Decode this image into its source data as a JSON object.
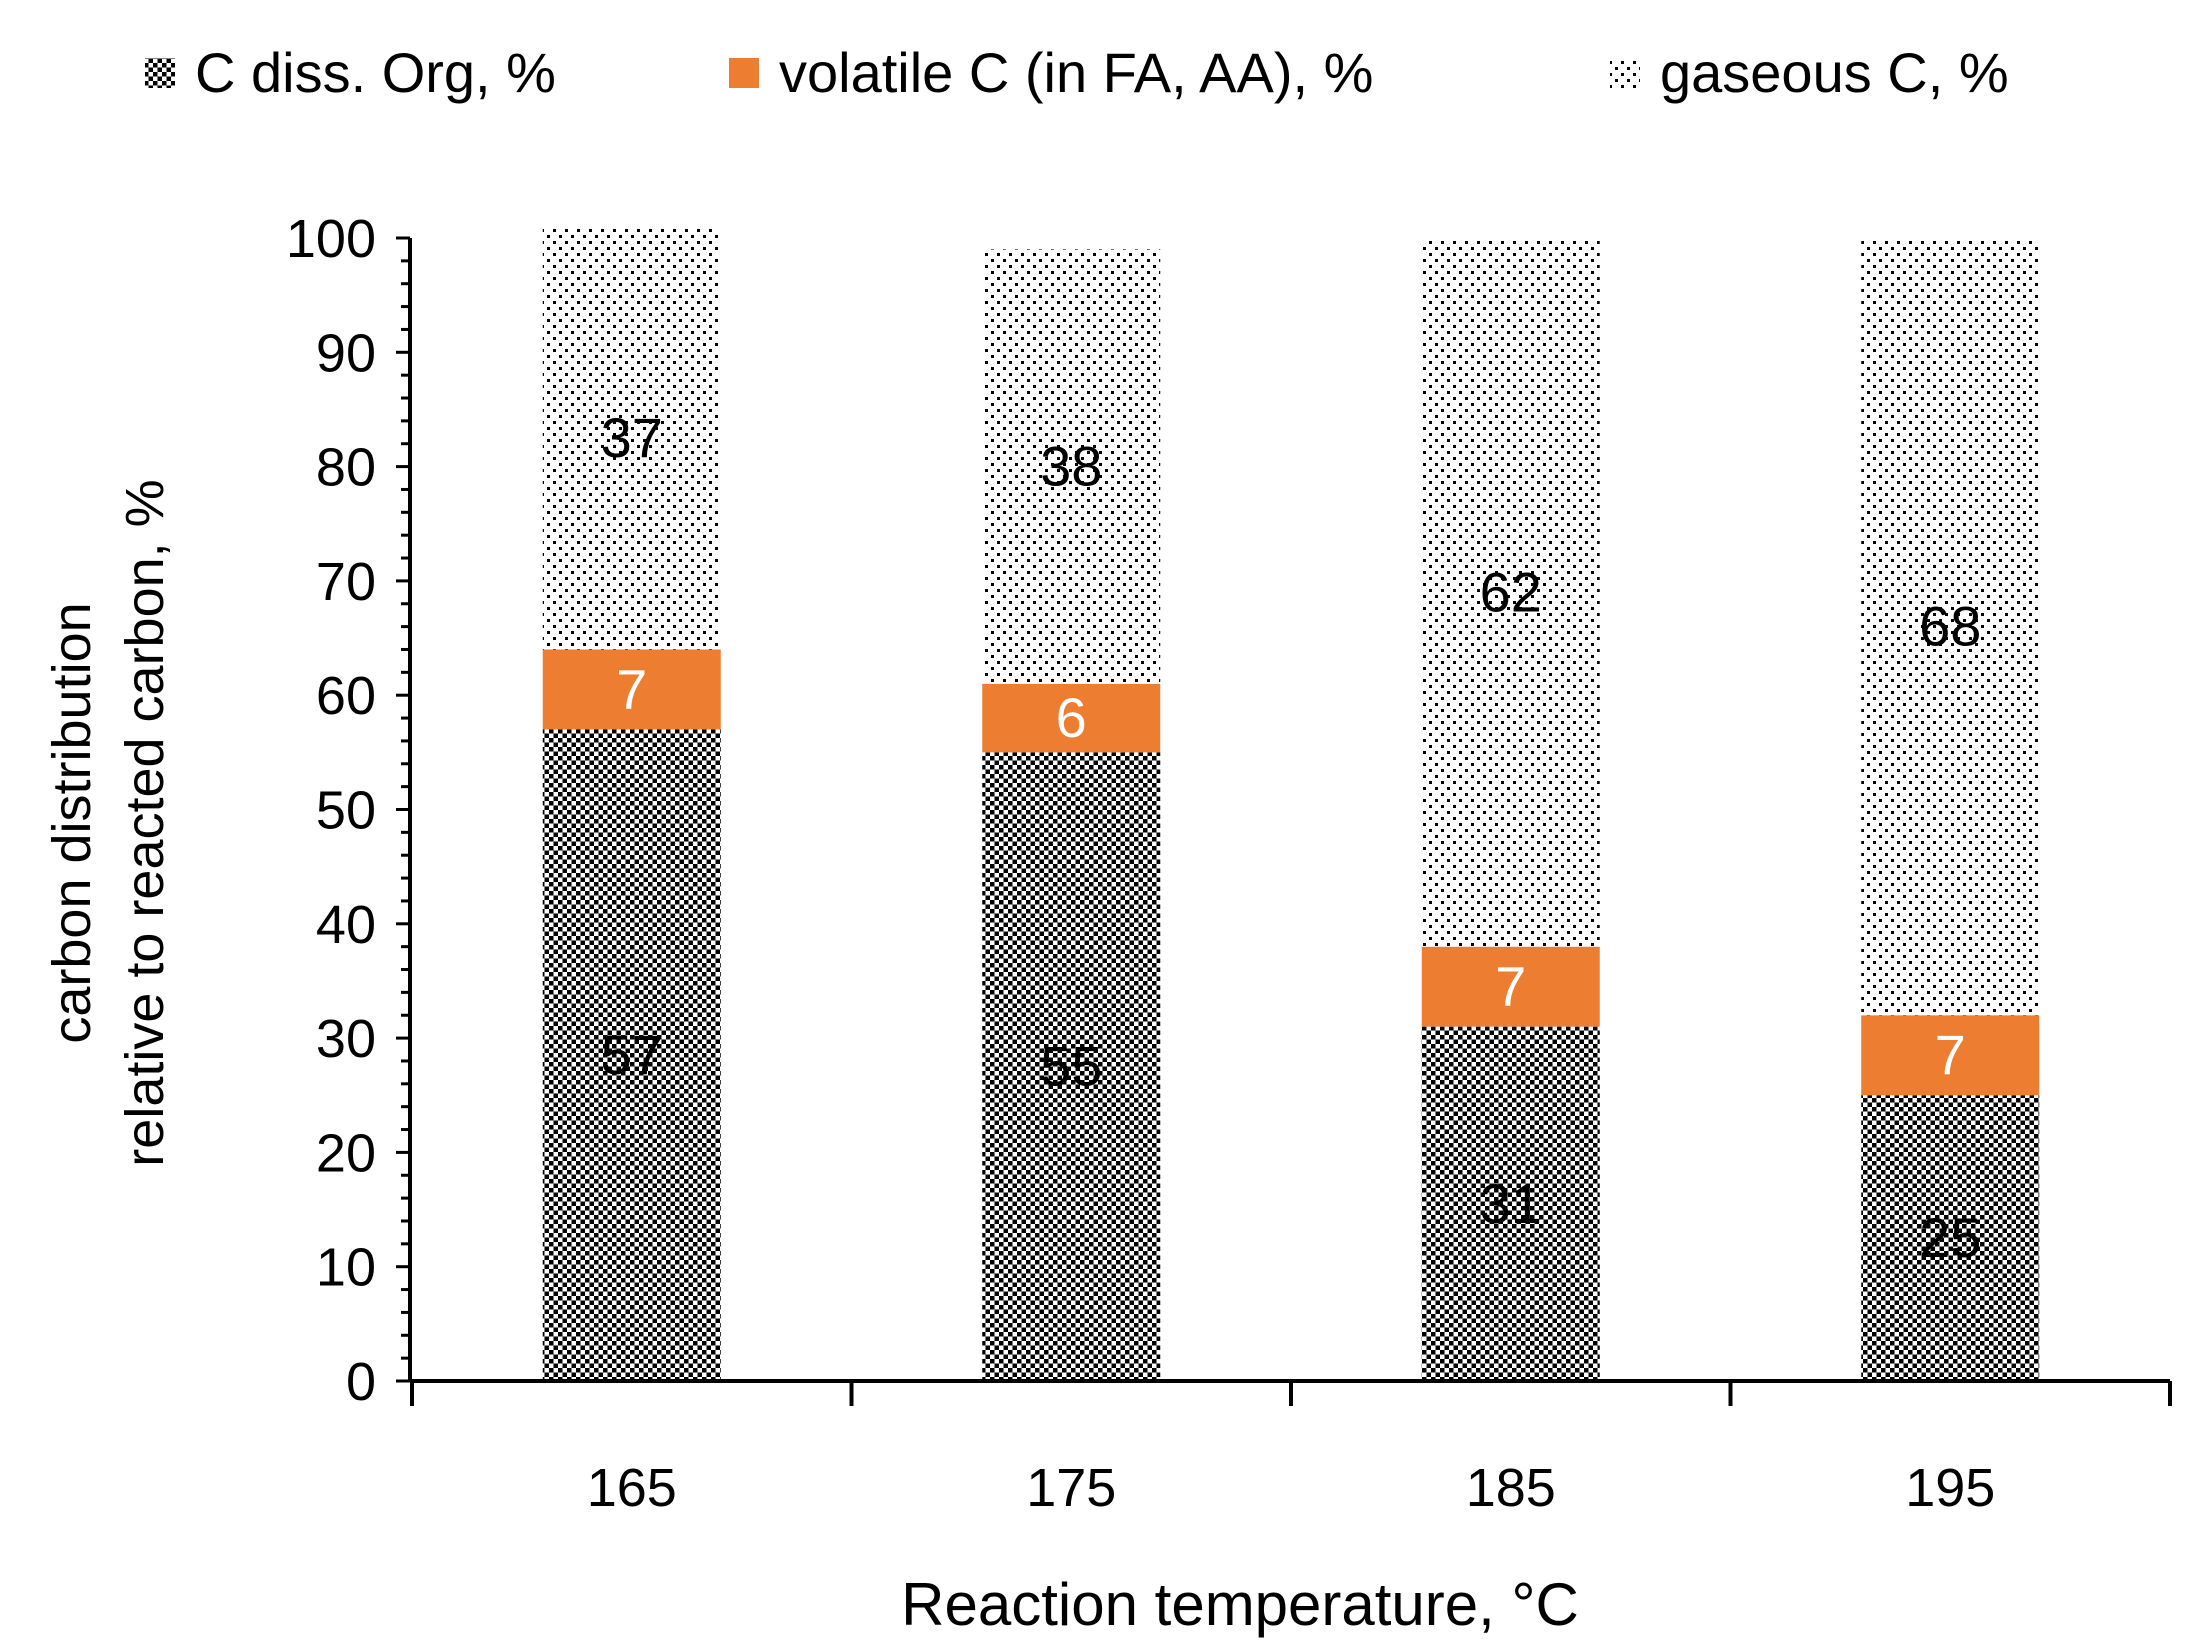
{
  "chart_data": {
    "type": "bar",
    "stacked": true,
    "title": "",
    "xlabel": "Reaction temperature, °C",
    "ylabel_lines": [
      "carbon distribution",
      "relative to reacted carbon, %"
    ],
    "categories": [
      "165",
      "175",
      "185",
      "195"
    ],
    "ylim": [
      0,
      100
    ],
    "yticks": [
      "0",
      "10",
      "20",
      "30",
      "40",
      "50",
      "60",
      "70",
      "80",
      "90",
      "100"
    ],
    "grid": false,
    "legend_position": "top",
    "series": [
      {
        "name": "C diss. Org, %",
        "pattern": "checker",
        "color": "#000000",
        "values": [
          57,
          55,
          31,
          25
        ],
        "labels": [
          "57",
          "55",
          "31",
          "25"
        ],
        "label_color": "#000000"
      },
      {
        "name": "volatile C (in FA, AA), %",
        "pattern": "solid",
        "color": "#ED7D31",
        "values": [
          7,
          6,
          7,
          7
        ],
        "labels": [
          "7",
          "6",
          "7",
          "7"
        ],
        "label_color": "#ffffff"
      },
      {
        "name": "gaseous C, %",
        "pattern": "dots",
        "color": "#000000",
        "values": [
          37,
          38,
          62,
          68
        ],
        "labels": [
          "37",
          "38",
          "62",
          "68"
        ],
        "label_color": "#000000"
      }
    ]
  }
}
